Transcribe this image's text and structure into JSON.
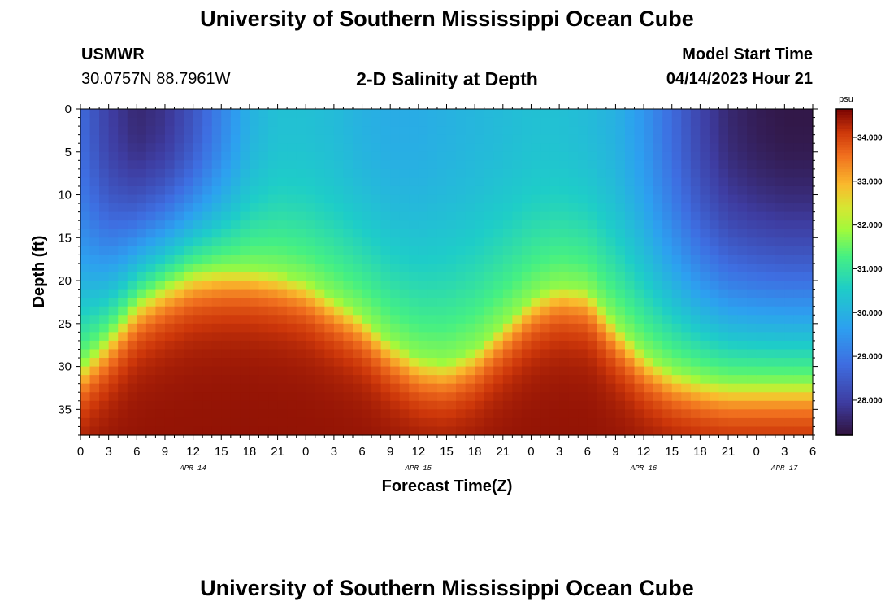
{
  "header": {
    "title": "University of Southern Mississippi Ocean Cube",
    "station": "USMWR",
    "coords": "30.0757N  88.7961W",
    "subtitle": "2-D Salinity at Depth",
    "model_label": "Model Start Time",
    "model_time": "04/14/2023 Hour 21"
  },
  "footer": {
    "title": "University of Southern Mississippi Ocean Cube"
  },
  "chart_data": {
    "type": "heatmap",
    "title": "2-D Salinity at Depth",
    "xlabel": "Forecast Time(Z)",
    "ylabel": "Depth (ft)",
    "x_range_hours": [
      0,
      78
    ],
    "x_ticks": [
      "0",
      "3",
      "6",
      "9",
      "12",
      "15",
      "18",
      "21",
      "0",
      "3",
      "6",
      "9",
      "12",
      "15",
      "18",
      "21",
      "0",
      "3",
      "6",
      "9",
      "12",
      "15",
      "18",
      "21",
      "0",
      "3",
      "6"
    ],
    "date_labels": [
      {
        "label": "APR 14",
        "hour": 12
      },
      {
        "label": "APR 15",
        "hour": 36
      },
      {
        "label": "APR 16",
        "hour": 60
      },
      {
        "label": "APR 17",
        "hour": 75
      }
    ],
    "y_range": [
      0,
      38
    ],
    "y_ticks": [
      0,
      5,
      10,
      15,
      20,
      25,
      30,
      35
    ],
    "colorbar": {
      "unit": "psu",
      "range": [
        27.2,
        34.65
      ],
      "ticks": [
        "28.000",
        "29.000",
        "30.000",
        "31.000",
        "32.000",
        "33.000",
        "34.000"
      ],
      "tick_values": [
        28,
        29,
        30,
        31,
        32,
        33,
        34
      ]
    },
    "halocline_depth_ft": {
      "hours": [
        0,
        3,
        6,
        9,
        12,
        15,
        18,
        21,
        24,
        27,
        30,
        33,
        36,
        39,
        42,
        45,
        48,
        51,
        54,
        57,
        60,
        63,
        66,
        69,
        72,
        75,
        78
      ],
      "depth": [
        30,
        26.5,
        22.5,
        20.5,
        19,
        18.5,
        18.5,
        19,
        20,
        22,
        24,
        27,
        29,
        29.5,
        28,
        25,
        22,
        20.5,
        21,
        25,
        28.5,
        30.5,
        31.5,
        32,
        32,
        32,
        32
      ]
    },
    "surface_salinity_psu": {
      "hours": [
        0,
        3,
        6,
        9,
        12,
        15,
        18,
        21,
        24,
        27,
        30,
        33,
        36,
        39,
        42,
        45,
        48,
        51,
        54,
        57,
        60,
        63,
        66,
        69,
        72,
        75,
        78
      ],
      "value": [
        28.8,
        28.0,
        27.6,
        27.8,
        28.4,
        29.2,
        30.0,
        30.3,
        30.3,
        30.2,
        30.0,
        29.9,
        29.9,
        30.0,
        30.1,
        30.2,
        30.3,
        30.3,
        30.2,
        30.0,
        29.5,
        28.8,
        28.1,
        27.6,
        27.4,
        27.3,
        27.3
      ]
    },
    "bottom_salinity_psu": 34.5
  }
}
